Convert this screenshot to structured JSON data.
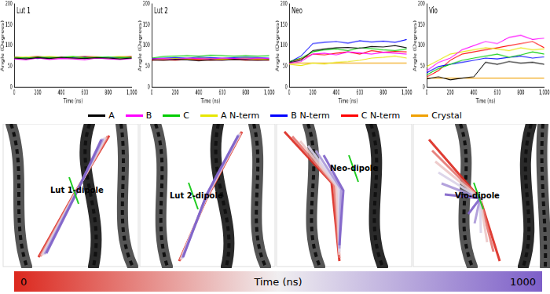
{
  "chart_data": [
    {
      "type": "line",
      "title": "Lut 1",
      "x_label": "Time (ns)",
      "y_label": "Angle (Degrees)",
      "grid": false,
      "x": [
        0,
        100,
        200,
        300,
        400,
        500,
        600,
        700,
        800,
        900,
        1000
      ],
      "xlim": [
        0,
        1000
      ],
      "xticks": [
        0,
        200,
        400,
        600,
        800,
        1000
      ],
      "ylim": [
        0,
        200
      ],
      "yticks": [
        0,
        50,
        100,
        150,
        200
      ],
      "series": [
        {
          "name": "A",
          "color": "#000000",
          "values": [
            70,
            68,
            71,
            69,
            72,
            70,
            69,
            71,
            70,
            68,
            70
          ]
        },
        {
          "name": "B",
          "color": "#ff00ff",
          "values": [
            68,
            66,
            70,
            67,
            69,
            68,
            66,
            70,
            68,
            67,
            69
          ]
        },
        {
          "name": "C",
          "color": "#00cc00",
          "values": [
            72,
            70,
            73,
            71,
            72,
            74,
            71,
            72,
            73,
            71,
            72
          ]
        },
        {
          "name": "A N-term",
          "color": "#e6e600",
          "values": [
            71,
            73,
            72,
            74,
            72,
            73,
            71,
            73,
            72,
            74,
            72
          ]
        },
        {
          "name": "B N-term",
          "color": "#0000ff",
          "values": [
            70,
            71,
            69,
            72,
            70,
            71,
            73,
            70,
            71,
            72,
            70
          ]
        },
        {
          "name": "C N-term",
          "color": "#ff0000",
          "values": [
            73,
            72,
            74,
            71,
            73,
            72,
            74,
            73,
            72,
            73,
            74
          ]
        },
        {
          "name": "Crystal",
          "color": "#f0a000",
          "values": [
            70,
            70,
            70,
            70,
            70,
            70,
            70,
            70,
            70,
            70,
            70
          ]
        }
      ]
    },
    {
      "type": "line",
      "title": "Lut 2",
      "x_label": "Time (ns)",
      "y_label": "Angle (Degrees)",
      "grid": false,
      "x": [
        0,
        100,
        200,
        300,
        400,
        500,
        600,
        700,
        800,
        900,
        1000
      ],
      "xlim": [
        0,
        1000
      ],
      "xticks": [
        0,
        200,
        400,
        600,
        800,
        1000
      ],
      "ylim": [
        0,
        200
      ],
      "yticks": [
        0,
        50,
        100,
        150,
        200
      ],
      "series": [
        {
          "name": "A",
          "color": "#000000",
          "values": [
            66,
            65,
            67,
            66,
            64,
            66,
            65,
            67,
            66,
            65,
            66
          ]
        },
        {
          "name": "B",
          "color": "#ff00ff",
          "values": [
            68,
            69,
            67,
            70,
            69,
            68,
            70,
            69,
            68,
            70,
            69
          ]
        },
        {
          "name": "C",
          "color": "#00cc00",
          "values": [
            70,
            74,
            75,
            76,
            75,
            77,
            76,
            75,
            76,
            75,
            76
          ]
        },
        {
          "name": "A N-term",
          "color": "#e6e600",
          "values": [
            67,
            68,
            69,
            68,
            70,
            69,
            68,
            69,
            70,
            69,
            68
          ]
        },
        {
          "name": "B N-term",
          "color": "#0000ff",
          "values": [
            69,
            70,
            71,
            70,
            72,
            71,
            70,
            71,
            72,
            71,
            70
          ]
        },
        {
          "name": "C N-term",
          "color": "#ff0000",
          "values": [
            65,
            66,
            65,
            67,
            66,
            65,
            66,
            67,
            65,
            66,
            65
          ]
        },
        {
          "name": "Crystal",
          "color": "#f0a000",
          "values": [
            67,
            67,
            67,
            67,
            67,
            67,
            67,
            67,
            67,
            67,
            67
          ]
        }
      ]
    },
    {
      "type": "line",
      "title": "Neo",
      "x_label": "Time (ns)",
      "y_label": "Angle (Degrees)",
      "grid": false,
      "x": [
        0,
        100,
        200,
        300,
        400,
        500,
        600,
        700,
        800,
        900,
        1000
      ],
      "xlim": [
        0,
        1000
      ],
      "xticks": [
        0,
        200,
        400,
        600,
        800,
        1000
      ],
      "ylim": [
        0,
        200
      ],
      "yticks": [
        0,
        50,
        100,
        150,
        200
      ],
      "series": [
        {
          "name": "A",
          "color": "#000000",
          "values": [
            60,
            65,
            88,
            92,
            95,
            96,
            94,
            98,
            97,
            100,
            95
          ]
        },
        {
          "name": "B",
          "color": "#ff00ff",
          "values": [
            58,
            62,
            80,
            82,
            78,
            85,
            83,
            80,
            84,
            82,
            80
          ]
        },
        {
          "name": "C",
          "color": "#00cc00",
          "values": [
            62,
            70,
            85,
            90,
            92,
            88,
            95,
            93,
            90,
            88,
            92
          ]
        },
        {
          "name": "A N-term",
          "color": "#e6e600",
          "values": [
            55,
            52,
            58,
            56,
            60,
            62,
            65,
            70,
            72,
            75,
            70
          ]
        },
        {
          "name": "B N-term",
          "color": "#0000ff",
          "values": [
            60,
            75,
            105,
            108,
            110,
            106,
            112,
            109,
            111,
            108,
            115
          ]
        },
        {
          "name": "C N-term",
          "color": "#ff0000",
          "values": [
            62,
            68,
            80,
            78,
            82,
            85,
            80,
            88,
            84,
            86,
            85
          ]
        },
        {
          "name": "Crystal",
          "color": "#f0a000",
          "values": [
            58,
            58,
            58,
            58,
            58,
            58,
            58,
            58,
            58,
            58,
            58
          ]
        }
      ]
    },
    {
      "type": "line",
      "title": "Vio",
      "x_label": "Time (ns)",
      "y_label": "Angle (Degrees)",
      "grid": false,
      "x": [
        0,
        100,
        200,
        300,
        400,
        500,
        600,
        700,
        800,
        900,
        1000
      ],
      "xlim": [
        0,
        1000
      ],
      "xticks": [
        0,
        200,
        400,
        600,
        800,
        1000
      ],
      "ylim": [
        0,
        200
      ],
      "yticks": [
        0,
        50,
        100,
        150,
        200
      ],
      "series": [
        {
          "name": "A",
          "color": "#000000",
          "values": [
            20,
            25,
            18,
            22,
            25,
            60,
            55,
            62,
            58,
            60,
            55
          ]
        },
        {
          "name": "B",
          "color": "#ff00ff",
          "values": [
            40,
            60,
            70,
            90,
            100,
            110,
            105,
            120,
            125,
            115,
            118
          ]
        },
        {
          "name": "C",
          "color": "#00cc00",
          "values": [
            30,
            45,
            55,
            65,
            70,
            75,
            80,
            72,
            78,
            85,
            80
          ]
        },
        {
          "name": "A N-term",
          "color": "#e6e600",
          "values": [
            50,
            65,
            80,
            85,
            90,
            95,
            92,
            88,
            95,
            90,
            92
          ]
        },
        {
          "name": "B N-term",
          "color": "#0000ff",
          "values": [
            35,
            50,
            55,
            60,
            65,
            70,
            68,
            72,
            75,
            70,
            73
          ]
        },
        {
          "name": "C N-term",
          "color": "#ff0000",
          "values": [
            25,
            40,
            65,
            80,
            85,
            90,
            95,
            100,
            105,
            110,
            95
          ]
        },
        {
          "name": "Crystal",
          "color": "#f0a000",
          "values": [
            22,
            22,
            22,
            22,
            22,
            22,
            22,
            22,
            22,
            22,
            22
          ]
        }
      ]
    }
  ],
  "structures": [
    {
      "label": "Lut 1-dipole"
    },
    {
      "label": "Lut 2-dipole"
    },
    {
      "label": "Neo-dipole"
    },
    {
      "label": "Vio-dipole"
    }
  ],
  "time_colorbar": {
    "label": "Time (ns)",
    "range": [
      0,
      1000
    ],
    "ticks": [
      0,
      1000
    ]
  }
}
